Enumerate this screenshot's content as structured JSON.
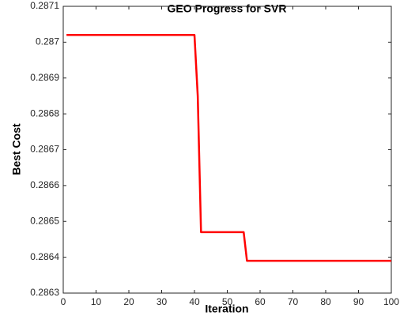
{
  "chart_data": {
    "type": "line",
    "title": "GEO Progress for SVR",
    "x_label": "Iteration",
    "y_label": "Best Cost",
    "x": [
      1,
      40,
      41,
      42,
      55,
      56,
      100
    ],
    "series": [
      {
        "name": "Best Cost",
        "color": "#ff0000",
        "values": [
          0.28702,
          0.28702,
          0.28685,
          0.28647,
          0.28647,
          0.28639,
          0.28639
        ]
      }
    ],
    "xlim": [
      0,
      100
    ],
    "xticks": [
      0,
      10,
      20,
      30,
      40,
      50,
      60,
      70,
      80,
      90,
      100
    ],
    "ylim": [
      0.2863,
      0.2871
    ],
    "yticks": [
      0.2863,
      0.2864,
      0.2865,
      0.2866,
      0.2867,
      0.2868,
      0.2869,
      0.287,
      0.2871
    ],
    "grid": false
  }
}
